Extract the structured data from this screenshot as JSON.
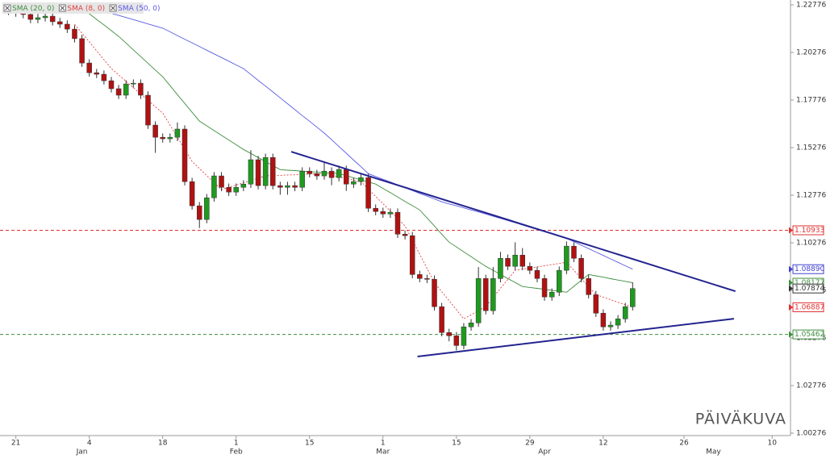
{
  "chart_data": {
    "type": "candlestick",
    "watermark": "PÄIVÄKUVA",
    "ylim": [
      1.00276,
      1.22776
    ],
    "yticks": [
      1.00276,
      1.02776,
      1.05276,
      1.07776,
      1.10276,
      1.12776,
      1.15276,
      1.17776,
      1.20276,
      1.22776
    ],
    "up_color": "#1f9a1f",
    "down_color": "#b01212",
    "categories": [
      null,
      "21",
      null,
      null,
      null,
      null,
      null,
      null,
      null,
      null,
      null,
      "4",
      null,
      null,
      null,
      null,
      null,
      null,
      null,
      null,
      null,
      "18",
      null,
      null,
      null,
      null,
      null,
      null,
      null,
      null,
      null,
      "1",
      null,
      null,
      null,
      null,
      null,
      null,
      null,
      null,
      null,
      "15",
      null,
      null,
      null,
      null,
      null,
      null,
      null,
      null,
      null,
      "1",
      null,
      null,
      null,
      null,
      null,
      null,
      null,
      null,
      null,
      "15",
      null,
      null,
      null,
      null,
      null,
      null,
      null,
      null,
      null,
      "29",
      null,
      null,
      null,
      null,
      null,
      null,
      null,
      null,
      null,
      "12",
      null,
      null,
      null,
      null,
      null,
      null,
      null,
      null,
      null,
      null,
      "26",
      null,
      null,
      null,
      null,
      null,
      null,
      null,
      null,
      null,
      null,
      null,
      "10",
      null,
      null
    ],
    "months": [
      null,
      null,
      null,
      null,
      null,
      null,
      null,
      null,
      null,
      null,
      "Jan",
      null,
      null,
      null,
      null,
      null,
      null,
      null,
      null,
      null,
      null,
      null,
      null,
      null,
      null,
      null,
      null,
      null,
      null,
      null,
      null,
      "Feb",
      null,
      null,
      null,
      null,
      null,
      null,
      null,
      null,
      null,
      null,
      null,
      null,
      null,
      null,
      null,
      null,
      null,
      null,
      null,
      "Mar",
      null,
      null,
      null,
      null,
      null,
      null,
      null,
      null,
      null,
      null,
      null,
      null,
      null,
      null,
      null,
      null,
      null,
      null,
      null,
      null,
      null,
      "Apr",
      null,
      null,
      null,
      null,
      null,
      null,
      null,
      null,
      null,
      null,
      null,
      null,
      null,
      null,
      null,
      null,
      null,
      null,
      null,
      null,
      null,
      null,
      "May",
      null,
      null,
      null,
      null,
      null,
      null,
      null,
      null,
      null,
      null
    ],
    "open": [
      1.225,
      1.2244,
      1.2235,
      1.2227,
      1.2201,
      1.221,
      1.2218,
      1.2189,
      1.2176,
      1.215,
      1.21,
      1.1972,
      1.1921,
      1.1913,
      1.1879,
      1.1837,
      1.1803,
      1.1862,
      1.1866,
      1.1803,
      1.1646,
      1.1582,
      1.1574,
      1.1582,
      1.1625,
      1.1349,
      1.1222,
      1.115,
      1.1264,
      1.1379,
      1.1319,
      1.1294,
      1.1319,
      1.1336,
      1.1464,
      1.1328,
      1.1476,
      1.1328,
      1.1319,
      1.1328,
      1.1319,
      1.1404,
      1.1391,
      1.1379,
      1.1404,
      1.137,
      1.1413,
      1.1336,
      1.1349,
      1.137,
      1.1209,
      1.1192,
      1.1179,
      1.1188,
      1.1073,
      1.1065,
      1.0861,
      1.084,
      1.0836,
      1.0692,
      1.0556,
      1.0539,
      1.0488,
      1.0586,
      1.0607,
      1.084,
      1.0671,
      1.084,
      1.0946,
      1.0904,
      1.0963,
      1.0904,
      1.0883,
      1.084,
      1.0743,
      1.0768,
      1.0883,
      1.101,
      1.0946,
      1.084,
      1.0755,
      1.0658,
      1.0586,
      1.0595,
      1.0628,
      1.0692,
      null,
      null,
      null,
      null,
      null,
      null,
      null,
      null,
      null,
      null,
      null,
      null,
      null,
      null,
      null,
      null,
      null,
      null,
      null,
      null,
      null
    ],
    "high": [
      1.227,
      1.2264,
      1.2255,
      1.2247,
      1.223,
      1.2238,
      1.2238,
      1.2209,
      1.2196,
      1.217,
      1.212,
      1.1992,
      1.1941,
      1.1933,
      1.1899,
      1.1857,
      1.1882,
      1.1886,
      1.1886,
      1.1823,
      1.1666,
      1.1602,
      1.1602,
      1.166,
      1.1645,
      1.1369,
      1.1242,
      1.1284,
      1.1399,
      1.1399,
      1.1339,
      1.1339,
      1.1356,
      1.1514,
      1.1484,
      1.1496,
      1.1496,
      1.1348,
      1.1348,
      1.1348,
      1.1424,
      1.1424,
      1.1411,
      1.145,
      1.1424,
      1.1433,
      1.1433,
      1.1369,
      1.139,
      1.139,
      1.1229,
      1.1212,
      1.1208,
      1.1208,
      1.1093,
      1.1085,
      1.0881,
      1.086,
      1.0856,
      1.0712,
      1.0576,
      1.0559,
      1.0606,
      1.0627,
      1.09,
      1.086,
      1.09,
      1.098,
      1.0966,
      1.103,
      1.1,
      1.0924,
      1.0903,
      1.086,
      1.0788,
      1.0903,
      1.1035,
      1.103,
      1.0966,
      1.086,
      1.0775,
      1.0678,
      1.0615,
      1.0648,
      1.0712,
      1.082,
      null,
      null,
      null,
      null,
      null,
      null,
      null,
      null,
      null,
      null,
      null,
      null,
      null,
      null,
      null,
      null,
      null,
      null,
      null,
      null,
      null
    ],
    "low": [
      1.2224,
      1.2215,
      1.2207,
      1.2181,
      1.2181,
      1.219,
      1.2169,
      1.2156,
      1.213,
      1.208,
      1.1952,
      1.1901,
      1.1893,
      1.1859,
      1.1817,
      1.1783,
      1.1783,
      1.1842,
      1.1783,
      1.1626,
      1.15,
      1.1554,
      1.1554,
      1.1562,
      1.1329,
      1.1202,
      1.1105,
      1.113,
      1.1244,
      1.1299,
      1.1274,
      1.1274,
      1.1299,
      1.1316,
      1.1308,
      1.1308,
      1.1308,
      1.128,
      1.128,
      1.1299,
      1.1299,
      1.1371,
      1.1359,
      1.1359,
      1.133,
      1.135,
      1.13,
      1.1316,
      1.1329,
      1.1189,
      1.1172,
      1.1159,
      1.1159,
      1.1053,
      1.1045,
      1.0841,
      1.082,
      1.0816,
      1.0672,
      1.0536,
      1.051,
      1.0462,
      1.0468,
      1.0566,
      1.0587,
      1.0651,
      1.0651,
      1.082,
      1.0884,
      1.0884,
      1.0884,
      1.0863,
      1.082,
      1.0723,
      1.0723,
      1.0748,
      1.0863,
      1.0926,
      1.082,
      1.0735,
      1.0638,
      1.0566,
      1.0566,
      1.0575,
      1.0608,
      1.0672,
      null,
      null,
      null,
      null,
      null,
      null,
      null,
      null,
      null,
      null,
      null,
      null,
      null,
      null,
      null,
      null,
      null,
      null,
      null,
      null,
      null
    ],
    "close": [
      1.2244,
      1.2235,
      1.2227,
      1.2201,
      1.221,
      1.2218,
      1.2189,
      1.2176,
      1.215,
      1.21,
      1.1972,
      1.1921,
      1.1913,
      1.1879,
      1.1837,
      1.1803,
      1.1862,
      1.1866,
      1.1803,
      1.1646,
      1.1582,
      1.1574,
      1.1582,
      1.1625,
      1.1349,
      1.1222,
      1.115,
      1.1264,
      1.1379,
      1.1319,
      1.1294,
      1.1319,
      1.1336,
      1.1464,
      1.1328,
      1.1476,
      1.1328,
      1.1319,
      1.1328,
      1.1319,
      1.1404,
      1.1391,
      1.1379,
      1.1404,
      1.137,
      1.1413,
      1.1336,
      1.1349,
      1.137,
      1.1209,
      1.1192,
      1.1179,
      1.1188,
      1.1073,
      1.1065,
      1.0861,
      1.084,
      1.0836,
      1.0692,
      1.0556,
      1.0539,
      1.0488,
      1.0586,
      1.0607,
      1.084,
      1.0671,
      1.084,
      1.0946,
      1.0904,
      1.0963,
      1.0904,
      1.0883,
      1.084,
      1.0743,
      1.0768,
      1.0883,
      1.101,
      1.0946,
      1.084,
      1.0755,
      1.0658,
      1.0586,
      1.0595,
      1.0628,
      1.0692,
      1.0787,
      null,
      null,
      null,
      null,
      null,
      null,
      null,
      null,
      null,
      null,
      null,
      null,
      null,
      null,
      null,
      null,
      null,
      null,
      null,
      null,
      null
    ],
    "series": [
      {
        "name": "SMA (20, 0)",
        "color": "#3f8f3f",
        "dash": false,
        "values": [
          null,
          null,
          null,
          null,
          null,
          null,
          null,
          null,
          null,
          null,
          1.2261,
          1.2231,
          1.2201,
          1.2172,
          1.2142,
          1.2112,
          1.2077,
          1.2041,
          1.2006,
          1.1971,
          1.1935,
          1.19,
          1.1853,
          1.1806,
          1.176,
          1.1713,
          1.1667,
          1.1642,
          1.1617,
          1.1592,
          1.1568,
          1.1543,
          1.1518,
          1.1497,
          1.1476,
          1.1454,
          1.1433,
          1.1412,
          1.1409,
          1.1407,
          1.1404,
          1.1401,
          1.1399,
          1.1396,
          1.1394,
          1.1391,
          1.138,
          1.1369,
          1.1358,
          1.1347,
          1.1336,
          1.1313,
          1.1291,
          1.1268,
          1.1245,
          1.1223,
          1.12,
          1.1158,
          1.1116,
          1.1073,
          1.1031,
          1.1006,
          1.098,
          1.0955,
          1.0929,
          1.0904,
          1.0883,
          1.0862,
          1.084,
          1.0819,
          1.0798,
          1.0793,
          1.0788,
          1.0783,
          1.0778,
          1.0773,
          1.0768,
          1.0799,
          1.083,
          1.0861,
          1.0854,
          1.0847,
          1.0839,
          1.0832,
          1.0825,
          1.0818,
          null,
          null,
          null,
          null,
          null,
          null,
          null,
          null,
          null,
          null,
          null,
          null,
          null,
          null,
          null,
          null,
          null,
          null,
          null,
          null,
          null
        ]
      },
      {
        "name": "SMA (8, 0)",
        "color": "#e04040",
        "dash": true,
        "values": [
          null,
          null,
          null,
          null,
          null,
          null,
          null,
          null,
          null,
          1.2176,
          1.2129,
          1.2083,
          1.2036,
          1.199,
          1.1943,
          1.191,
          1.1876,
          1.1843,
          1.1809,
          1.1776,
          1.1742,
          1.1709,
          1.1646,
          1.1582,
          1.1519,
          1.1455,
          1.1418,
          1.1381,
          1.1344,
          1.1307,
          1.1319,
          1.1331,
          1.1343,
          1.1355,
          1.1367,
          1.1379,
          1.1381,
          1.1382,
          1.1384,
          1.1385,
          1.1387,
          1.1388,
          1.139,
          1.1391,
          1.1383,
          1.1374,
          1.1366,
          1.1357,
          1.1349,
          1.131,
          1.1271,
          1.1233,
          1.1194,
          1.1155,
          1.1116,
          1.1042,
          1.0968,
          1.0893,
          1.0819,
          1.0771,
          1.0724,
          1.0676,
          1.0628,
          1.0649,
          1.0671,
          1.0692,
          1.074,
          1.0788,
          1.0835,
          1.0883,
          1.0889,
          1.0895,
          1.0901,
          1.0907,
          1.0913,
          1.0919,
          1.0925,
          1.0883,
          1.084,
          1.0798,
          1.0755,
          1.0742,
          1.0729,
          1.0715,
          1.0702,
          1.0689,
          null,
          null,
          null,
          null,
          null,
          null,
          null,
          null,
          null,
          null,
          null,
          null,
          null,
          null,
          null,
          null,
          null,
          null,
          null,
          null,
          null
        ]
      },
      {
        "name": "SMA (50, 0)",
        "color": "#5a5ae6",
        "dash": false,
        "values": [
          null,
          null,
          null,
          null,
          null,
          null,
          null,
          null,
          null,
          null,
          1.2278,
          1.2267,
          1.2256,
          1.2244,
          1.2233,
          1.2222,
          1.2211,
          1.22,
          1.2189,
          1.2177,
          1.2166,
          1.2155,
          1.2136,
          1.2116,
          1.2097,
          1.2078,
          1.2059,
          1.2039,
          1.202,
          1.2001,
          1.1982,
          1.1962,
          1.1943,
          1.1912,
          1.1881,
          1.1851,
          1.182,
          1.1789,
          1.1758,
          1.1727,
          1.1696,
          1.1666,
          1.1635,
          1.1604,
          1.1569,
          1.1533,
          1.1498,
          1.1462,
          1.1427,
          1.1391,
          1.1376,
          1.1361,
          1.1347,
          1.1332,
          1.1317,
          1.1302,
          1.1287,
          1.1273,
          1.1258,
          1.1243,
          1.1232,
          1.1222,
          1.1211,
          1.12,
          1.119,
          1.1179,
          1.1167,
          1.1156,
          1.1144,
          1.1133,
          1.1121,
          1.1109,
          1.1098,
          1.1086,
          1.1074,
          1.1063,
          1.1051,
          1.1033,
          1.1015,
          1.0997,
          1.0979,
          1.0961,
          1.0943,
          1.0925,
          1.0907,
          1.0889,
          null,
          null,
          null,
          null,
          null,
          null,
          null,
          null,
          null,
          null,
          null,
          null,
          null,
          null,
          null,
          null,
          null,
          null,
          null,
          null,
          null
        ]
      }
    ],
    "trendlines": [
      {
        "color": "#23238f",
        "x": [
          38.5,
          99
        ],
        "values": [
          1.1506,
          1.0773
        ]
      },
      {
        "color": "#23238f",
        "x": [
          55.7,
          98.8
        ],
        "values": [
          1.043,
          1.0629
        ]
      }
    ],
    "tags": [
      {
        "value": 1.10933,
        "color": "#e03030",
        "line": true
      },
      {
        "value": 1.0889,
        "label": "1.08890",
        "color": "#4040d0",
        "line": false
      },
      {
        "value": 1.08177,
        "color": "#3f8f3f",
        "line": false
      },
      {
        "value": 1.07874,
        "color": "#333333",
        "line": false
      },
      {
        "value": 1.06887,
        "color": "#e03030",
        "line": false
      },
      {
        "value": 1.05462,
        "color": "#3f8f3f",
        "line": true
      }
    ]
  }
}
